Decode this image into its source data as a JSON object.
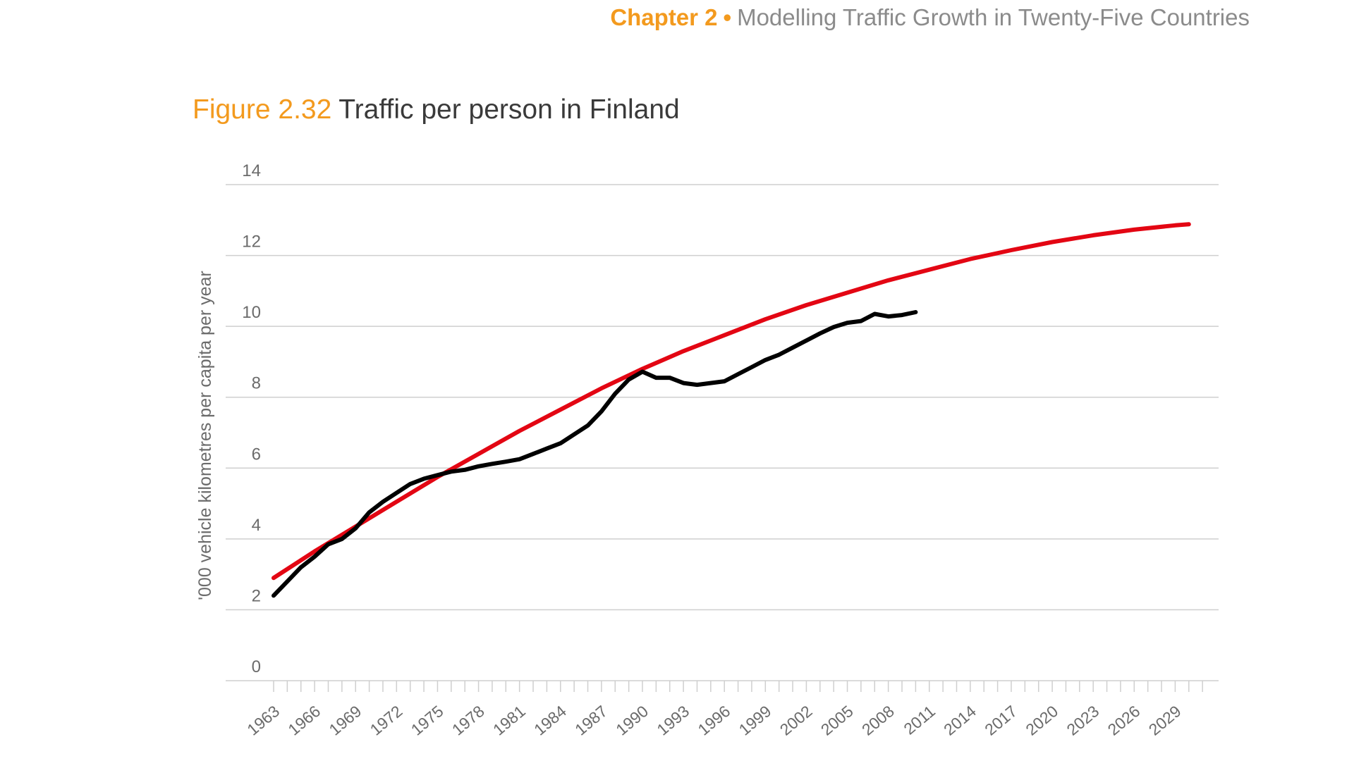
{
  "header": {
    "chapter": "Chapter 2",
    "separator": "•",
    "subtitle": "Modelling Traffic Growth in Twenty-Five Countries"
  },
  "figure": {
    "number": "Figure 2.32",
    "title": "Traffic per person in Finland"
  },
  "colors": {
    "accent": "#f39a1e",
    "trend": "#e30613",
    "actual": "#000000",
    "grid": "#cfcfcf",
    "text": "#6b6b6b"
  },
  "chart_data": {
    "type": "line",
    "title": "Traffic per person in Finland",
    "xlabel": "",
    "ylabel": "'000 vehicle kilometres per capita per year",
    "ylim": [
      0,
      14
    ],
    "yticks": [
      0,
      2,
      4,
      6,
      8,
      10,
      12,
      14
    ],
    "xlim": [
      1963,
      2031
    ],
    "xticks": [
      1963,
      1966,
      1969,
      1972,
      1975,
      1978,
      1981,
      1984,
      1987,
      1990,
      1993,
      1996,
      1999,
      2002,
      2005,
      2008,
      2011,
      2014,
      2017,
      2020,
      2023,
      2026,
      2029
    ],
    "grid": true,
    "series": [
      {
        "x": [
          1963,
          1966,
          1969,
          1972,
          1975,
          1978,
          1981,
          1984,
          1987,
          1990,
          1993,
          1996,
          1999,
          2002,
          2005,
          2008,
          2011,
          2014,
          2017,
          2020,
          2023,
          2026,
          2029,
          2030
        ],
        "values": [
          2.9,
          3.65,
          4.35,
          5.05,
          5.75,
          6.4,
          7.05,
          7.65,
          8.25,
          8.8,
          9.3,
          9.75,
          10.2,
          10.6,
          10.95,
          11.3,
          11.6,
          11.9,
          12.15,
          12.38,
          12.57,
          12.73,
          12.85,
          12.88
        ]
      },
      {
        "x": [
          1963,
          1964,
          1965,
          1966,
          1967,
          1968,
          1969,
          1970,
          1971,
          1972,
          1973,
          1974,
          1975,
          1976,
          1977,
          1978,
          1979,
          1980,
          1981,
          1982,
          1983,
          1984,
          1985,
          1986,
          1987,
          1988,
          1989,
          1990,
          1991,
          1992,
          1993,
          1994,
          1995,
          1996,
          1997,
          1998,
          1999,
          2000,
          2001,
          2002,
          2003,
          2004,
          2005,
          2006,
          2007,
          2008,
          2009,
          2010
        ],
        "values": [
          2.4,
          2.8,
          3.2,
          3.5,
          3.85,
          4.0,
          4.3,
          4.75,
          5.05,
          5.3,
          5.55,
          5.7,
          5.8,
          5.9,
          5.95,
          6.05,
          6.12,
          6.18,
          6.25,
          6.4,
          6.55,
          6.7,
          6.95,
          7.2,
          7.6,
          8.1,
          8.5,
          8.72,
          8.55,
          8.55,
          8.4,
          8.35,
          8.4,
          8.45,
          8.65,
          8.85,
          9.05,
          9.2,
          9.4,
          9.6,
          9.8,
          9.98,
          10.1,
          10.15,
          10.35,
          10.28,
          10.32,
          10.4
        ]
      }
    ]
  }
}
